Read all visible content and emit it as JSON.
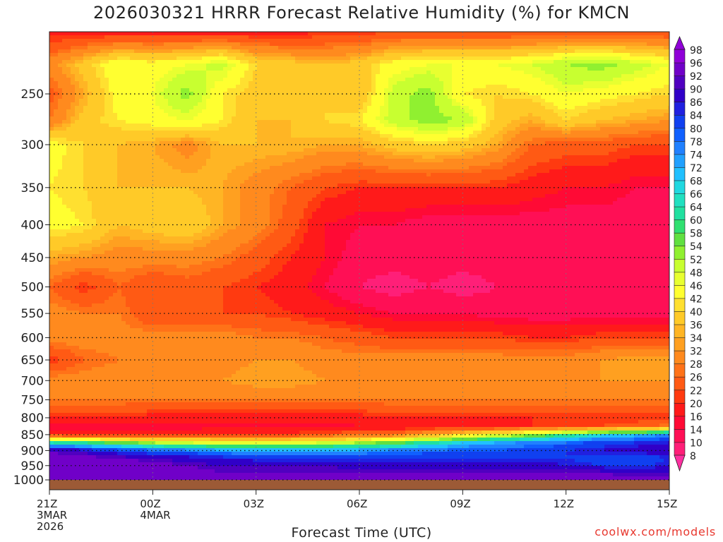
{
  "title": "2026030321 HRRR Forecast Relative Humidity (%) for KMCN",
  "xlabel": "Forecast Time (UTC)",
  "credit": "coolwx.com/models",
  "colorbar": {
    "levels": [
      8,
      10,
      14,
      16,
      20,
      22,
      26,
      28,
      32,
      34,
      36,
      40,
      42,
      46,
      48,
      52,
      54,
      58,
      60,
      64,
      66,
      68,
      72,
      74,
      78,
      80,
      84,
      86,
      90,
      92,
      96,
      98
    ],
    "colors": [
      "#ff2fa0",
      "#ff1f78",
      "#ff0f55",
      "#ff0a35",
      "#ff1a1a",
      "#ff3a10",
      "#ff5a14",
      "#ff7218",
      "#ff8a1e",
      "#ffa020",
      "#ffb524",
      "#ffca28",
      "#ffe030",
      "#ffff30",
      "#e8ff30",
      "#c8ff30",
      "#90f030",
      "#60e040",
      "#30e070",
      "#20e0a0",
      "#20e0c0",
      "#20d8e0",
      "#20c0ff",
      "#20a0ff",
      "#2080ff",
      "#1060ff",
      "#1040f0",
      "#2020e0",
      "#3000c8",
      "#5000c0",
      "#7000c8",
      "#9000d8"
    ]
  },
  "chart_data": {
    "type": "heatmap",
    "title": "2026030321 HRRR Forecast Relative Humidity (%) for KMCN",
    "xlabel": "Forecast Time (UTC)",
    "ylabel": "",
    "units": "%",
    "y_scale": "log",
    "y_inverted": true,
    "xlim": [
      0,
      18
    ],
    "ylim": [
      1000,
      200
    ],
    "grid": true,
    "legend_placement": "right (color bar)",
    "x_ticks": [
      {
        "hour": 0,
        "lines": [
          "21Z",
          "3MAR",
          "2026"
        ]
      },
      {
        "hour": 3,
        "lines": [
          "00Z",
          "4MAR"
        ]
      },
      {
        "hour": 6,
        "lines": [
          "03Z"
        ]
      },
      {
        "hour": 9,
        "lines": [
          "06Z"
        ]
      },
      {
        "hour": 12,
        "lines": [
          "09Z"
        ]
      },
      {
        "hour": 15,
        "lines": [
          "12Z"
        ]
      },
      {
        "hour": 18,
        "lines": [
          "15Z"
        ]
      }
    ],
    "y_ticks": [
      250,
      300,
      350,
      400,
      450,
      500,
      550,
      600,
      650,
      700,
      750,
      800,
      850,
      900,
      950,
      1000
    ],
    "x_hours": [
      0,
      1,
      2,
      3,
      4,
      5,
      6,
      7,
      8,
      9,
      10,
      11,
      12,
      13,
      14,
      15,
      16,
      17,
      18
    ],
    "pressure_levels": [
      200,
      225,
      250,
      275,
      300,
      350,
      400,
      450,
      500,
      550,
      600,
      650,
      700,
      750,
      800,
      825,
      850,
      875,
      900,
      925,
      950,
      975,
      1000
    ],
    "rh_percent": [
      [
        18,
        18,
        18,
        18,
        18,
        18,
        18,
        18,
        20,
        20,
        22,
        22,
        22,
        22,
        22,
        22,
        22,
        22,
        22
      ],
      [
        30,
        38,
        46,
        44,
        46,
        50,
        40,
        38,
        36,
        38,
        44,
        46,
        46,
        46,
        48,
        52,
        54,
        50,
        46
      ],
      [
        24,
        34,
        44,
        46,
        54,
        42,
        38,
        36,
        40,
        36,
        50,
        54,
        42,
        40,
        42,
        46,
        44,
        42,
        40
      ],
      [
        28,
        38,
        42,
        44,
        46,
        42,
        36,
        36,
        40,
        42,
        50,
        54,
        52,
        38,
        34,
        40,
        36,
        34,
        32
      ],
      [
        44,
        40,
        36,
        34,
        30,
        36,
        36,
        36,
        34,
        34,
        38,
        40,
        38,
        34,
        26,
        24,
        24,
        22,
        22
      ],
      [
        42,
        40,
        36,
        36,
        36,
        34,
        30,
        26,
        22,
        20,
        20,
        20,
        20,
        20,
        18,
        16,
        16,
        14,
        14
      ],
      [
        44,
        42,
        36,
        38,
        40,
        34,
        30,
        24,
        16,
        14,
        14,
        12,
        12,
        12,
        12,
        12,
        12,
        12,
        12
      ],
      [
        34,
        32,
        30,
        30,
        30,
        28,
        24,
        20,
        16,
        12,
        12,
        12,
        12,
        12,
        12,
        12,
        12,
        12,
        12
      ],
      [
        26,
        20,
        26,
        22,
        24,
        22,
        20,
        18,
        14,
        10,
        8,
        10,
        8,
        10,
        10,
        10,
        10,
        10,
        10
      ],
      [
        30,
        28,
        28,
        22,
        22,
        22,
        22,
        20,
        18,
        16,
        14,
        14,
        14,
        12,
        12,
        12,
        12,
        12,
        12
      ],
      [
        30,
        30,
        30,
        30,
        30,
        30,
        28,
        28,
        26,
        24,
        22,
        22,
        22,
        22,
        20,
        20,
        22,
        22,
        22
      ],
      [
        20,
        26,
        28,
        30,
        30,
        30,
        32,
        32,
        30,
        30,
        30,
        30,
        30,
        30,
        30,
        30,
        32,
        34,
        34
      ],
      [
        30,
        30,
        30,
        32,
        32,
        32,
        34,
        34,
        32,
        32,
        32,
        32,
        32,
        32,
        32,
        32,
        32,
        32,
        32
      ],
      [
        28,
        28,
        28,
        28,
        28,
        28,
        28,
        28,
        28,
        28,
        28,
        28,
        28,
        28,
        28,
        28,
        28,
        28,
        28
      ],
      [
        20,
        20,
        20,
        18,
        18,
        18,
        18,
        18,
        18,
        18,
        20,
        20,
        20,
        20,
        20,
        20,
        20,
        20,
        20
      ],
      [
        14,
        14,
        14,
        14,
        14,
        14,
        14,
        14,
        14,
        16,
        16,
        16,
        18,
        18,
        20,
        22,
        22,
        24,
        28
      ],
      [
        20,
        20,
        20,
        20,
        20,
        22,
        22,
        22,
        24,
        26,
        28,
        34,
        40,
        46,
        52,
        60,
        66,
        70,
        74
      ],
      [
        64,
        60,
        56,
        52,
        48,
        46,
        46,
        46,
        48,
        52,
        56,
        62,
        68,
        72,
        76,
        78,
        82,
        84,
        86
      ],
      [
        92,
        88,
        82,
        80,
        76,
        74,
        72,
        72,
        72,
        74,
        76,
        78,
        80,
        80,
        82,
        84,
        86,
        88,
        90
      ],
      [
        94,
        94,
        92,
        90,
        88,
        86,
        84,
        84,
        84,
        84,
        84,
        84,
        84,
        84,
        84,
        84,
        82,
        80,
        84
      ],
      [
        96,
        96,
        96,
        94,
        92,
        90,
        90,
        90,
        90,
        88,
        88,
        88,
        88,
        88,
        88,
        86,
        84,
        82,
        86
      ],
      [
        96,
        96,
        96,
        96,
        94,
        92,
        92,
        92,
        92,
        92,
        92,
        92,
        92,
        92,
        92,
        92,
        92,
        90,
        90
      ],
      [
        96,
        96,
        96,
        96,
        96,
        94,
        94,
        94,
        94,
        94,
        94,
        94,
        94,
        94,
        94,
        94,
        94,
        94,
        94
      ]
    ]
  }
}
